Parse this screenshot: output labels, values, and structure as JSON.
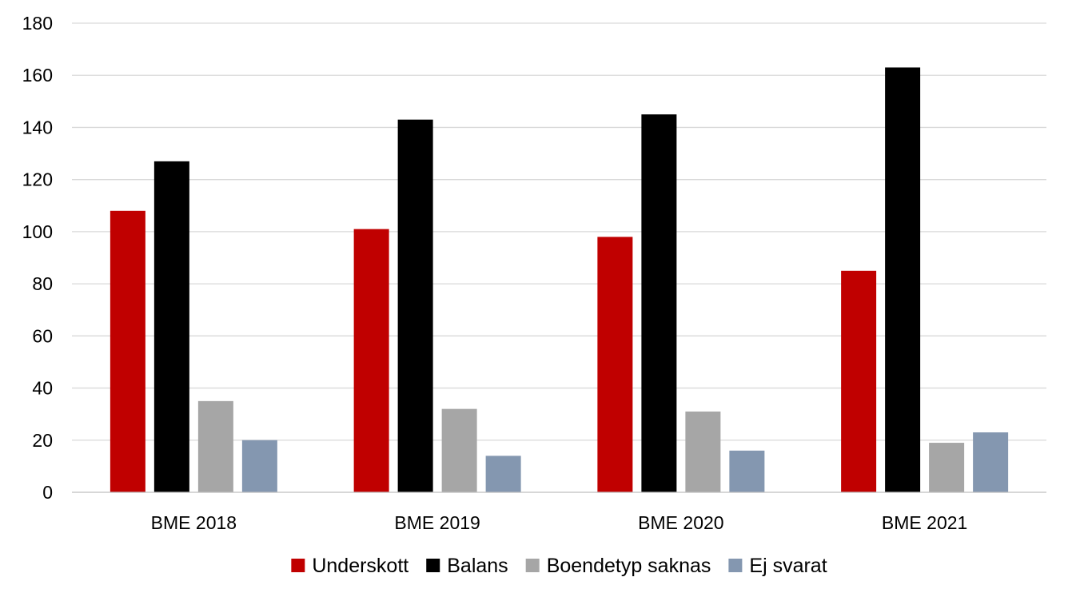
{
  "chart_data": {
    "type": "bar",
    "title": "",
    "xlabel": "",
    "ylabel": "",
    "ylim": [
      0,
      180
    ],
    "yticks": [
      0,
      20,
      40,
      60,
      80,
      100,
      120,
      140,
      160,
      180
    ],
    "grid": true,
    "legend_position": "bottom",
    "categories": [
      "BME 2018",
      "BME 2019",
      "BME 2020",
      "BME 2021"
    ],
    "series": [
      {
        "name": "Underskott",
        "color": "#c00000",
        "values": [
          108,
          101,
          98,
          85
        ]
      },
      {
        "name": "Balans",
        "color": "#000000",
        "values": [
          127,
          143,
          145,
          163
        ]
      },
      {
        "name": "Boendetyp saknas",
        "color": "#a6a6a6",
        "values": [
          35,
          32,
          31,
          19
        ]
      },
      {
        "name": "Ej svarat",
        "color": "#8497b0",
        "values": [
          20,
          14,
          16,
          23
        ]
      }
    ]
  }
}
